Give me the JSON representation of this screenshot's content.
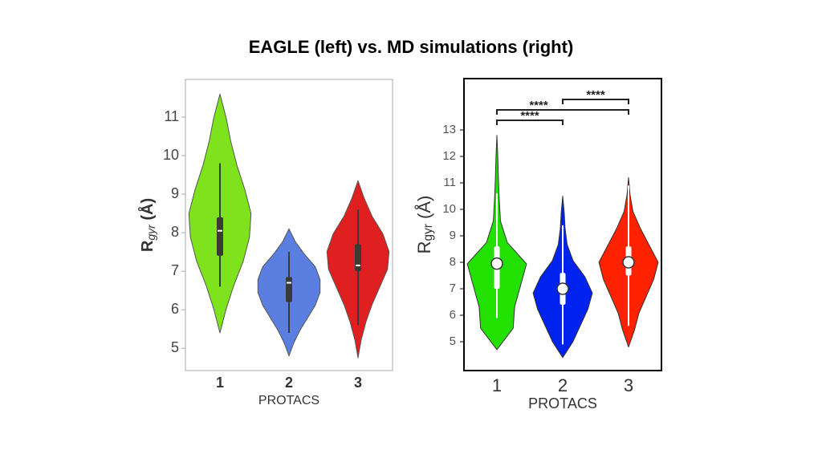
{
  "title": "EAGLE (left) vs. MD simulations (right)",
  "chart_data": [
    {
      "type": "violin",
      "ylabel_base": "R",
      "ylabel_sub": "gyr",
      "ylabel_rest": " (Å)",
      "xlabel": "PROTACS",
      "categories": [
        "1",
        "2",
        "3"
      ],
      "ylim": [
        4.42,
        11.98
      ],
      "yticks": [
        5,
        6,
        7,
        8,
        9,
        10,
        11
      ],
      "series": [
        {
          "color": "#7ee31c",
          "min": 5.4,
          "max": 11.6,
          "q1": 7.4,
          "median": 8.05,
          "q3": 8.4,
          "whisker_low": 6.6,
          "whisker_high": 9.8,
          "density": [
            0,
            0.2,
            0.45,
            0.75,
            0.95,
            1.0,
            0.8,
            0.55,
            0.35,
            0.2,
            0
          ]
        },
        {
          "color": "#5b7fe0",
          "min": 4.8,
          "max": 8.1,
          "q1": 6.2,
          "median": 6.7,
          "q3": 6.85,
          "whisker_low": 5.4,
          "whisker_high": 7.5,
          "density": [
            0,
            0.15,
            0.35,
            0.6,
            0.85,
            1.0,
            1.0,
            0.85,
            0.5,
            0.2,
            0
          ]
        },
        {
          "color": "#e02020",
          "min": 4.75,
          "max": 9.35,
          "q1": 7.0,
          "median": 7.15,
          "q3": 7.7,
          "whisker_low": 5.6,
          "whisker_high": 8.6,
          "density": [
            0,
            0.1,
            0.25,
            0.45,
            0.7,
            0.95,
            1.0,
            0.8,
            0.45,
            0.2,
            0
          ]
        }
      ]
    },
    {
      "type": "violin",
      "ylabel_base": "R",
      "ylabel_sub": "gyr",
      "ylabel_rest": " (Å)",
      "xlabel": "PROTACS",
      "categories": [
        "1",
        "2",
        "3"
      ],
      "ylim": [
        3.91,
        14.94
      ],
      "yticks": [
        5,
        6,
        7,
        8,
        9,
        10,
        11,
        12,
        13
      ],
      "series": [
        {
          "color": "#22e000",
          "min": 4.7,
          "max": 12.8,
          "q1": 7.0,
          "median": 7.95,
          "q3": 8.6,
          "whisker_low": 5.9,
          "whisker_high": 10.6,
          "density": [
            0,
            0.55,
            0.6,
            0.8,
            1.0,
            0.35,
            0.12,
            0.08,
            0.05,
            0.03,
            0
          ]
        },
        {
          "color": "#0022ee",
          "min": 4.4,
          "max": 10.5,
          "q1": 6.4,
          "median": 7.0,
          "q3": 7.6,
          "whisker_low": 4.9,
          "whisker_high": 9.4,
          "density": [
            0,
            0.35,
            0.6,
            0.85,
            1.0,
            0.75,
            0.35,
            0.15,
            0.08,
            0.05,
            0
          ]
        },
        {
          "color": "#ff2200",
          "min": 4.8,
          "max": 11.2,
          "q1": 7.5,
          "median": 8.0,
          "q3": 8.6,
          "whisker_low": 5.6,
          "whisker_high": 10.9,
          "density": [
            0,
            0.2,
            0.35,
            0.6,
            0.85,
            1.0,
            0.7,
            0.4,
            0.15,
            0.05,
            0
          ]
        }
      ],
      "annotations": [
        {
          "from": "1",
          "to": "2",
          "label": "****"
        },
        {
          "from": "1",
          "to": "3",
          "label": "****"
        },
        {
          "from": "2",
          "to": "3",
          "label": "****"
        }
      ]
    }
  ]
}
